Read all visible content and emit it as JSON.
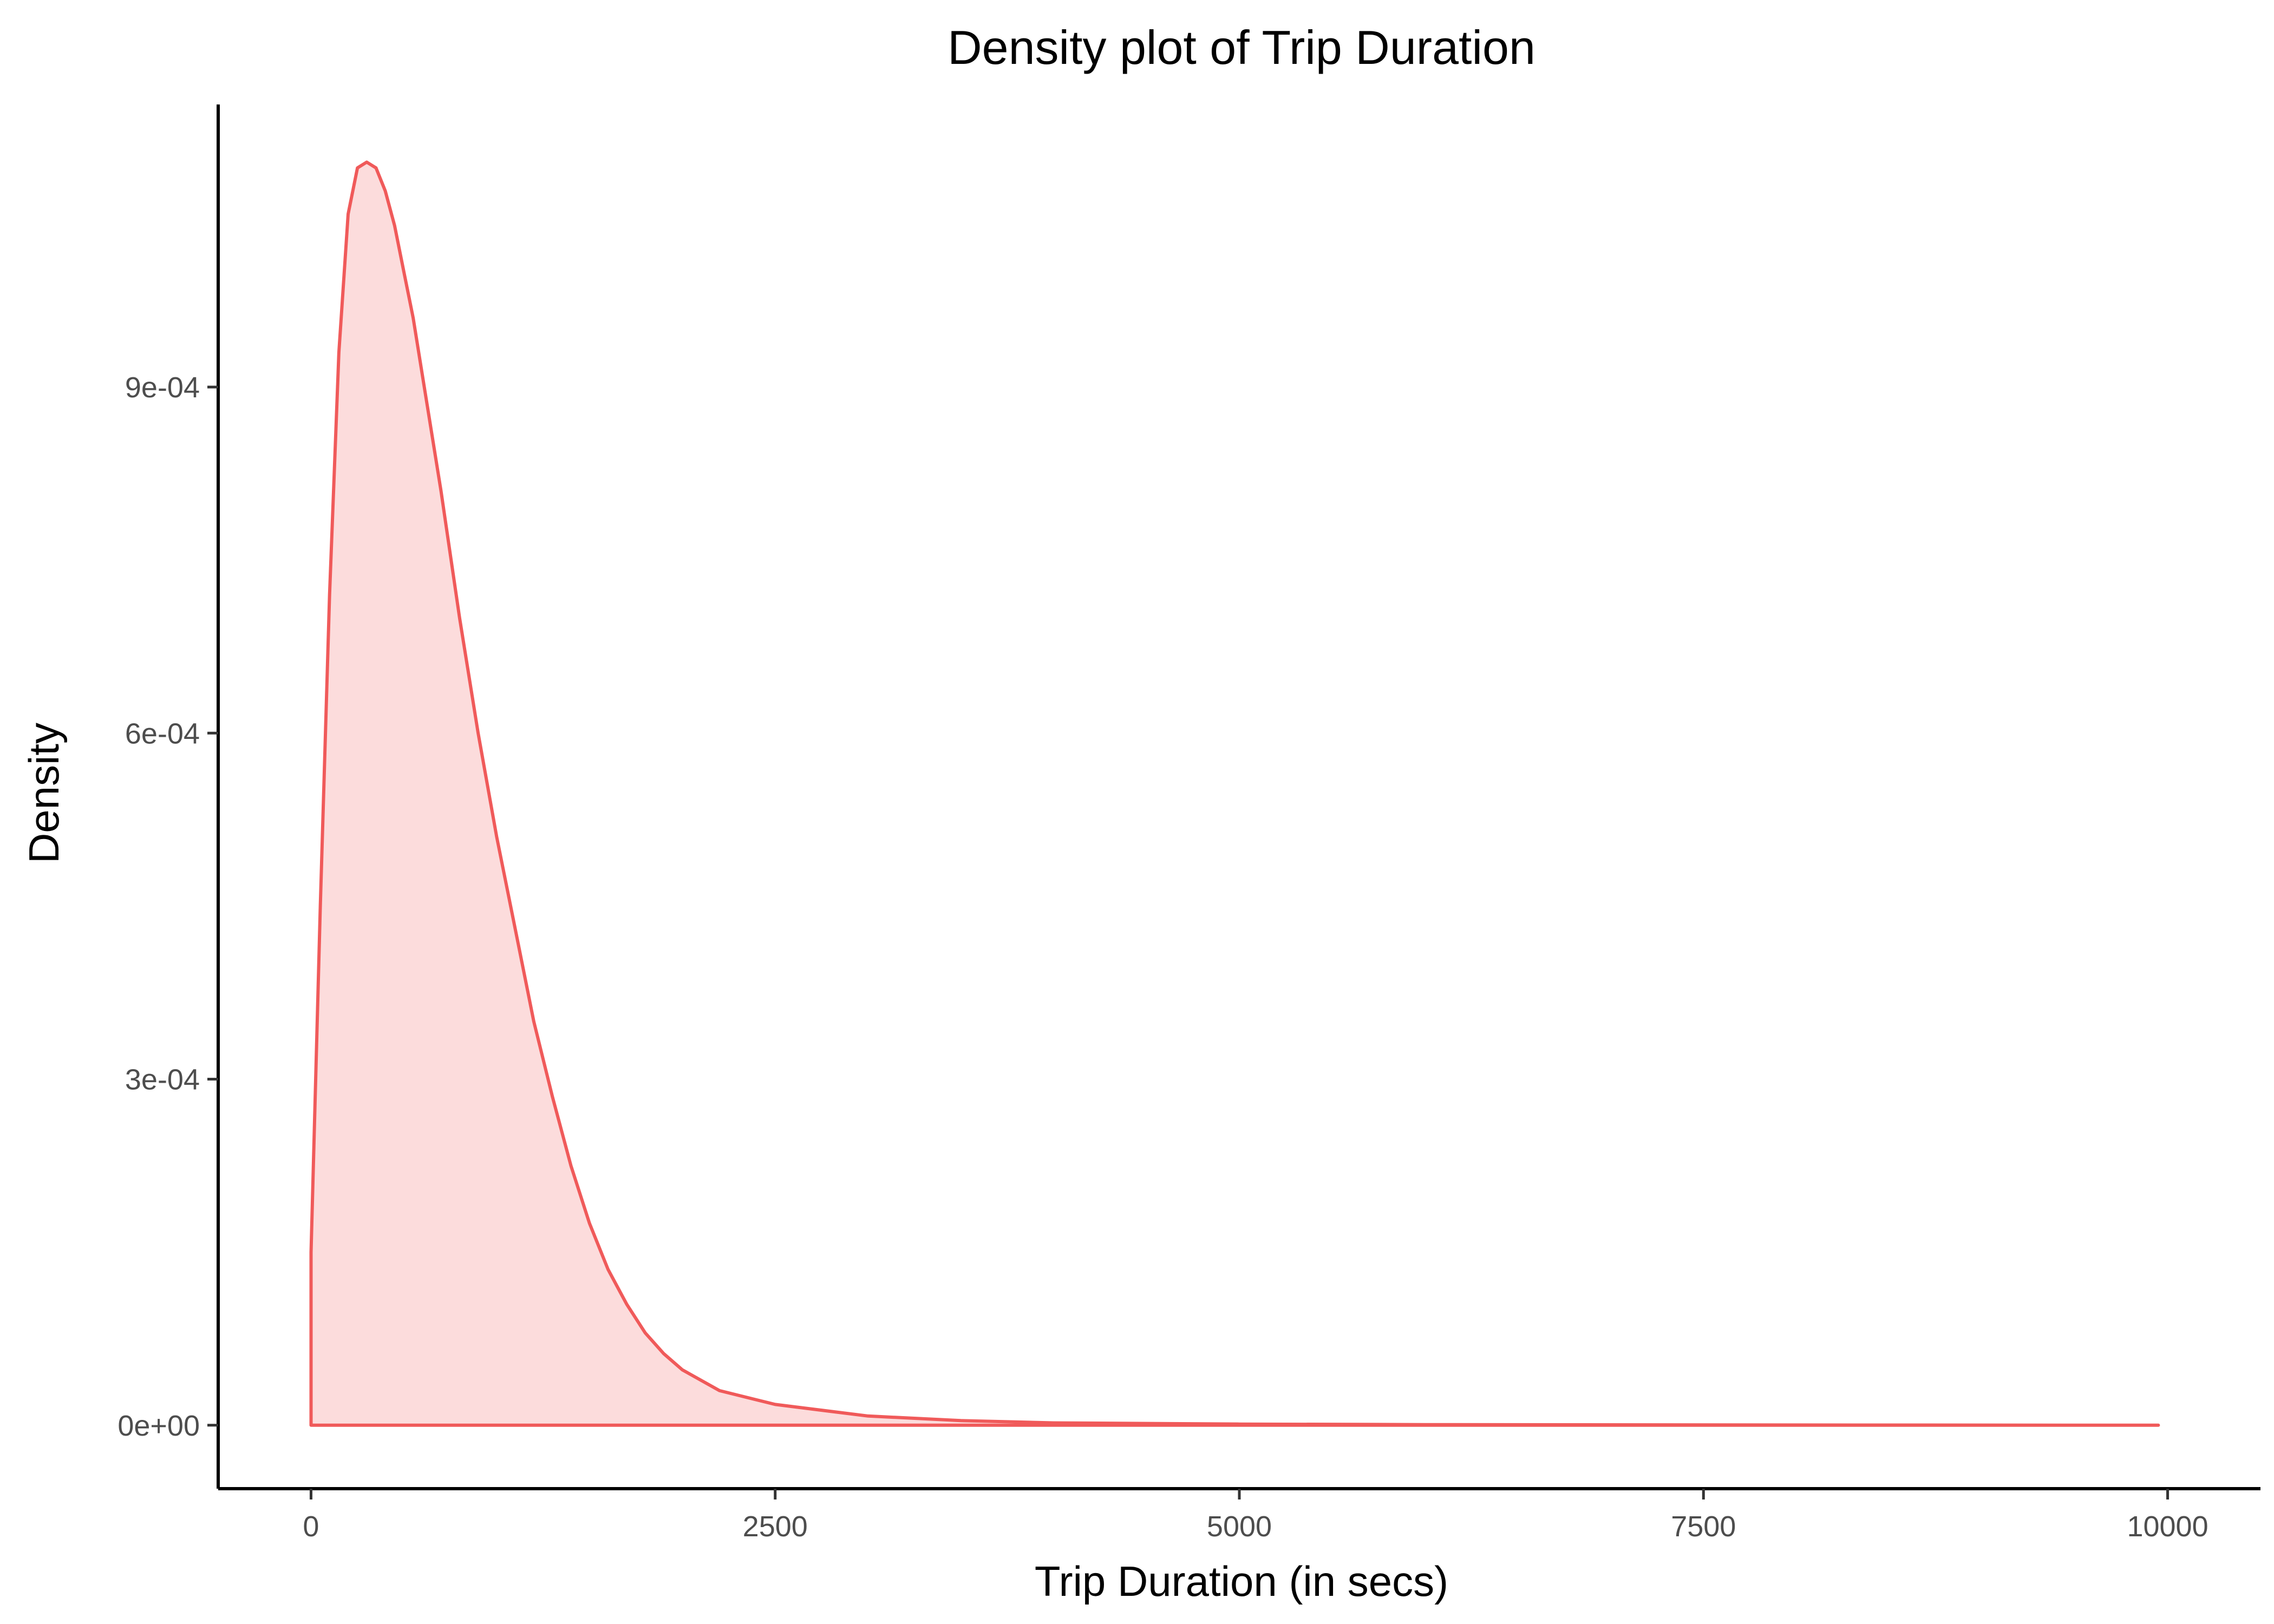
{
  "chart_data": {
    "type": "area",
    "title": "Density plot of Trip Duration",
    "xlabel": "Trip Duration (in secs)",
    "ylabel": "Density",
    "xlim": [
      -500,
      10500
    ],
    "ylim": [
      -5.5e-05,
      0.001145
    ],
    "x_ticks": [
      0,
      2500,
      5000,
      7500,
      10000
    ],
    "x_tick_labels": [
      "0",
      "2500",
      "5000",
      "7500",
      "10000"
    ],
    "y_ticks": [
      0,
      0.0003,
      0.0006,
      0.0009
    ],
    "y_tick_labels": [
      "0e+00",
      "3e-04",
      "6e-04",
      "9e-04"
    ],
    "grid": false,
    "legend": "none",
    "colors": {
      "line": "#f05a5a",
      "fill": "#fcdcdc"
    },
    "series": [
      {
        "x": [
          0,
          0,
          50,
          100,
          150,
          200,
          250,
          300,
          350,
          400,
          450,
          500,
          550,
          600,
          700,
          800,
          900,
          1000,
          1100,
          1200,
          1300,
          1400,
          1500,
          1600,
          1700,
          1800,
          1900,
          2000,
          2200,
          2500,
          3000,
          3500,
          4000,
          5000,
          6000,
          8000,
          9950,
          9950
        ],
        "y": [
          0,
          0.00015,
          0.00045,
          0.00072,
          0.00093,
          0.00105,
          0.00109,
          0.001095,
          0.00109,
          0.00107,
          0.00104,
          0.001,
          0.00096,
          0.00091,
          0.00081,
          0.0007,
          0.0006,
          0.00051,
          0.00043,
          0.00035,
          0.000285,
          0.000225,
          0.000175,
          0.000135,
          0.000105,
          8e-05,
          6.2e-05,
          4.8e-05,
          3e-05,
          1.8e-05,
          8e-06,
          4e-06,
          2e-06,
          1e-06,
          5e-07,
          2e-07,
          0,
          0
        ]
      }
    ]
  }
}
